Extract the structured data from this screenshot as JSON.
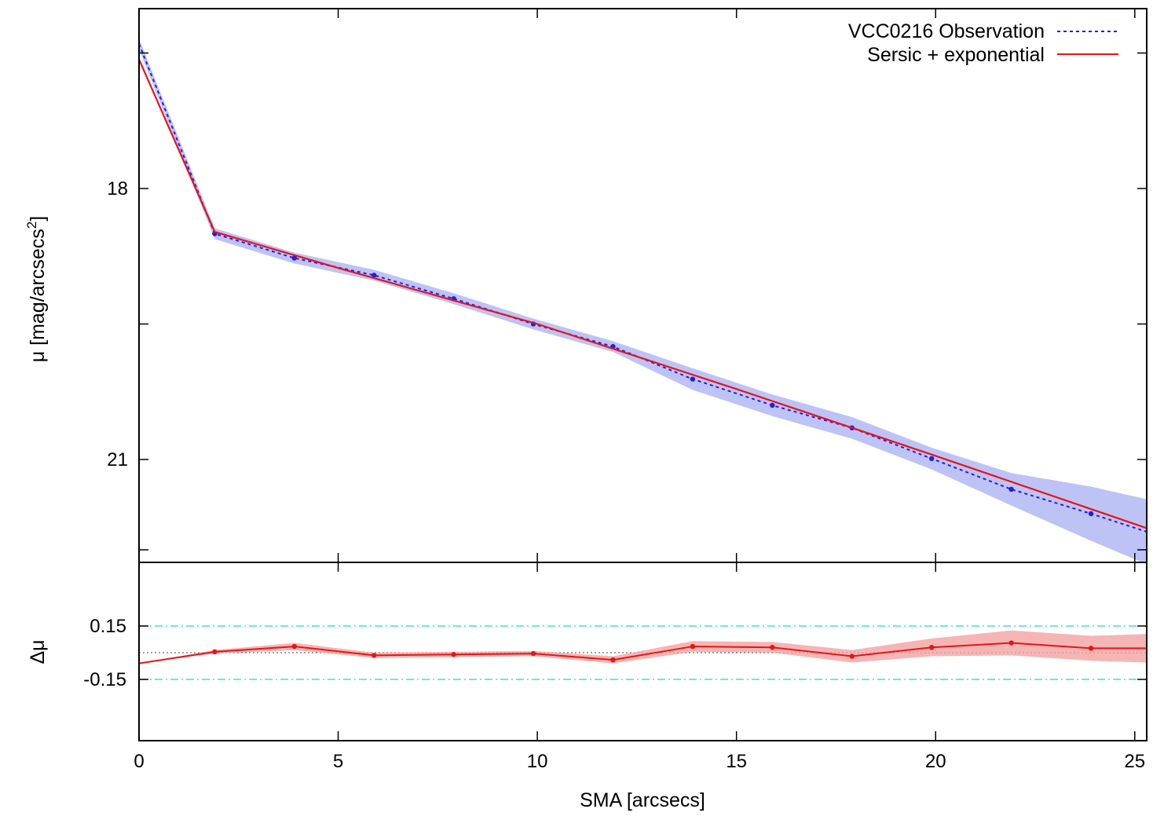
{
  "chart_data": [
    {
      "type": "line",
      "panel": "profile",
      "ylabel_prefix": "μ [mag/arcsecs",
      "ylabel_sup": "2",
      "ylabel_suffix": "]",
      "xlim": [
        0,
        25.3
      ],
      "ylim": [
        22.0,
        15.9
      ],
      "y_reversed": true,
      "y_major_ticks": [
        18,
        21
      ],
      "y_minor_ticks": [
        16.5,
        19.5,
        22
      ],
      "x_ticks": [
        0,
        5,
        10,
        15,
        20,
        25
      ],
      "legend_position": "top-right",
      "series": [
        {
          "name": "VCC0216 Observation",
          "style": "dotted",
          "color": "#1f1fe6",
          "band_color": "#b3b8f5",
          "points": [
            {
              "x": 0.0,
              "y": 16.4,
              "err": 0.01
            },
            {
              "x": 1.9,
              "y": 18.5,
              "err": 0.01
            },
            {
              "x": 3.9,
              "y": 18.77,
              "err": 0.01
            },
            {
              "x": 5.9,
              "y": 18.96,
              "err": 0.01
            },
            {
              "x": 7.9,
              "y": 19.22,
              "err": 0.01
            },
            {
              "x": 9.9,
              "y": 19.5,
              "err": 0.01
            },
            {
              "x": 11.9,
              "y": 19.75,
              "err": 0.01
            },
            {
              "x": 13.9,
              "y": 20.11,
              "err": 0.02
            },
            {
              "x": 15.9,
              "y": 20.4,
              "err": 0.02
            },
            {
              "x": 17.9,
              "y": 20.65,
              "err": 0.02
            },
            {
              "x": 19.9,
              "y": 20.99,
              "err": 0.02
            },
            {
              "x": 21.9,
              "y": 21.33,
              "err": 0.03
            },
            {
              "x": 23.9,
              "y": 21.6,
              "err": 0.05
            },
            {
              "x": 25.3,
              "y": 21.8,
              "err": 0.06
            }
          ]
        },
        {
          "name": "Sersic + exponential",
          "style": "solid",
          "color": "#e81414",
          "points": [
            {
              "x": 0.0,
              "y": 16.57
            },
            {
              "x": 1.9,
              "y": 18.48
            },
            {
              "x": 5.0,
              "y": 18.88
            },
            {
              "x": 10.0,
              "y": 19.5
            },
            {
              "x": 15.0,
              "y": 20.22
            },
            {
              "x": 20.0,
              "y": 20.96
            },
            {
              "x": 25.3,
              "y": 21.76
            }
          ]
        }
      ]
    },
    {
      "type": "line",
      "panel": "residual",
      "ylabel": "Δμ",
      "xlabel": "SMA [arcsecs]",
      "xlim": [
        0,
        25.3
      ],
      "ylim": [
        0.5,
        -0.5
      ],
      "y_reversed": true,
      "y_tick_values": [
        0.15,
        -0.15
      ],
      "y_tick_labels": [
        "0.15",
        "-0.15"
      ],
      "x_ticks": [
        0,
        5,
        10,
        15,
        20,
        25
      ],
      "x_tick_labels": [
        "0",
        "5",
        "10",
        "15",
        "20",
        "25"
      ],
      "reference_lines": [
        {
          "y": 0.15,
          "color": "#40e0d0",
          "style": "dash-dot"
        },
        {
          "y": -0.15,
          "color": "#40e0d0",
          "style": "dash-dot"
        },
        {
          "y": 0.0,
          "color": "#444444",
          "style": "dotted"
        }
      ],
      "series": [
        {
          "name": "residual",
          "color": "#e81414",
          "band_color": "#f4a3a3",
          "points": [
            {
              "x": 0.0,
              "y": -0.06,
              "err": 0.0
            },
            {
              "x": 1.9,
              "y": 0.005,
              "err": 0.01
            },
            {
              "x": 3.9,
              "y": 0.035,
              "err": 0.02
            },
            {
              "x": 5.9,
              "y": -0.015,
              "err": 0.015
            },
            {
              "x": 7.9,
              "y": -0.01,
              "err": 0.015
            },
            {
              "x": 9.9,
              "y": -0.005,
              "err": 0.015
            },
            {
              "x": 11.9,
              "y": -0.04,
              "err": 0.02
            },
            {
              "x": 13.9,
              "y": 0.035,
              "err": 0.03
            },
            {
              "x": 15.9,
              "y": 0.03,
              "err": 0.03
            },
            {
              "x": 17.9,
              "y": -0.02,
              "err": 0.035
            },
            {
              "x": 19.9,
              "y": 0.03,
              "err": 0.05
            },
            {
              "x": 21.9,
              "y": 0.055,
              "err": 0.07
            },
            {
              "x": 23.9,
              "y": 0.025,
              "err": 0.07
            },
            {
              "x": 25.3,
              "y": 0.025,
              "err": 0.08
            }
          ]
        }
      ]
    }
  ]
}
